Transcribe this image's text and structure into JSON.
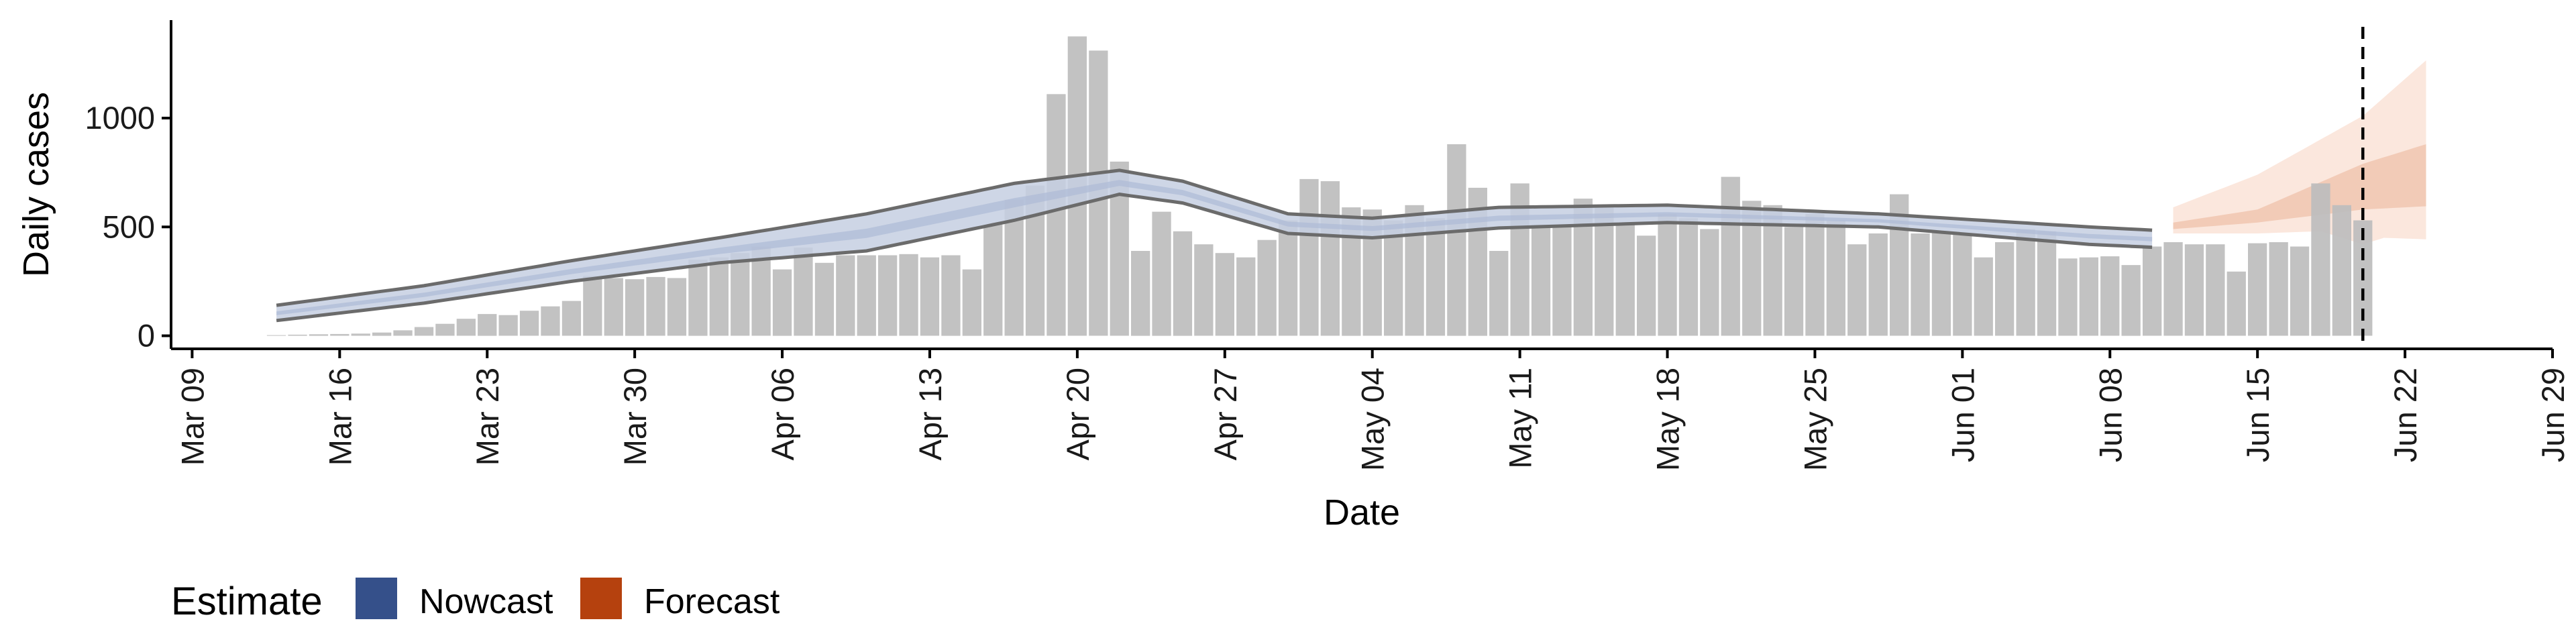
{
  "chart_data": {
    "type": "bar",
    "xlabel": "Date",
    "ylabel": "Daily cases",
    "grid": false,
    "y_ticks": [
      0,
      500,
      1000
    ],
    "ylim": [
      -60,
      1450
    ],
    "x_ticks": [
      {
        "date": "2020-03-09",
        "label": "Mar 09"
      },
      {
        "date": "2020-03-16",
        "label": "Mar 16"
      },
      {
        "date": "2020-03-23",
        "label": "Mar 23"
      },
      {
        "date": "2020-03-30",
        "label": "Mar 30"
      },
      {
        "date": "2020-04-06",
        "label": "Apr 06"
      },
      {
        "date": "2020-04-13",
        "label": "Apr 13"
      },
      {
        "date": "2020-04-20",
        "label": "Apr 20"
      },
      {
        "date": "2020-04-27",
        "label": "Apr 27"
      },
      {
        "date": "2020-05-04",
        "label": "May 04"
      },
      {
        "date": "2020-05-11",
        "label": "May 11"
      },
      {
        "date": "2020-05-18",
        "label": "May 18"
      },
      {
        "date": "2020-05-25",
        "label": "May 25"
      },
      {
        "date": "2020-06-01",
        "label": "Jun 01"
      },
      {
        "date": "2020-06-08",
        "label": "Jun 08"
      },
      {
        "date": "2020-06-15",
        "label": "Jun 15"
      },
      {
        "date": "2020-06-22",
        "label": "Jun 22"
      },
      {
        "date": "2020-06-29",
        "label": "Jun 29"
      }
    ],
    "xlim": [
      "2020-03-08",
      "2020-06-29"
    ],
    "observed_cases": {
      "start_date": "2020-03-13",
      "values": [
        3,
        5,
        7,
        8,
        10,
        15,
        25,
        40,
        55,
        78,
        100,
        95,
        115,
        135,
        160,
        275,
        265,
        260,
        270,
        265,
        350,
        360,
        380,
        410,
        305,
        405,
        335,
        370,
        370,
        370,
        375,
        360,
        370,
        305,
        510,
        625,
        690,
        1110,
        1375,
        1310,
        800,
        390,
        570,
        480,
        420,
        380,
        360,
        440,
        530,
        720,
        710,
        590,
        580,
        530,
        600,
        540,
        880,
        680,
        390,
        700,
        510,
        510,
        630,
        590,
        510,
        460,
        560,
        540,
        490,
        730,
        620,
        600,
        500,
        560,
        530,
        420,
        470,
        650,
        470,
        480,
        470,
        360,
        430,
        490,
        480,
        355,
        360,
        365,
        325,
        410,
        430,
        420,
        420,
        295,
        425,
        430,
        410,
        700,
        600,
        530
      ]
    },
    "nowcast": {
      "start_date": "2020-03-13",
      "end_date": "2020-06-10",
      "upper_90": [
        [
          0,
          140
        ],
        [
          7,
          230
        ],
        [
          14,
          345
        ],
        [
          21,
          450
        ],
        [
          28,
          560
        ],
        [
          35,
          700
        ],
        [
          40,
          760
        ],
        [
          43,
          710
        ],
        [
          48,
          560
        ],
        [
          52,
          540
        ],
        [
          58,
          590
        ],
        [
          66,
          600
        ],
        [
          76,
          560
        ],
        [
          86,
          500
        ],
        [
          96,
          450
        ],
        [
          104,
          430
        ],
        [
          110,
          480
        ],
        [
          118,
          570
        ]
      ],
      "lower_90": [
        [
          0,
          70
        ],
        [
          7,
          150
        ],
        [
          14,
          250
        ],
        [
          21,
          335
        ],
        [
          28,
          390
        ],
        [
          35,
          530
        ],
        [
          40,
          650
        ],
        [
          43,
          610
        ],
        [
          48,
          470
        ],
        [
          52,
          450
        ],
        [
          58,
          495
        ],
        [
          66,
          520
        ],
        [
          76,
          500
        ],
        [
          86,
          420
        ],
        [
          96,
          375
        ],
        [
          104,
          360
        ],
        [
          110,
          395
        ],
        [
          118,
          450
        ]
      ]
    },
    "forecast": {
      "start_date": "2020-06-11",
      "end_date": "2020-06-23",
      "upper_90": [
        [
          0,
          590
        ],
        [
          4,
          740
        ],
        [
          9,
          1010
        ],
        [
          13,
          1350
        ]
      ],
      "lower_90": [
        [
          0,
          470
        ],
        [
          4,
          470
        ],
        [
          7,
          480
        ],
        [
          9,
          420
        ],
        [
          10,
          450
        ],
        [
          13,
          440
        ]
      ],
      "upper_50": [
        [
          0,
          520
        ],
        [
          4,
          580
        ],
        [
          9,
          790
        ],
        [
          13,
          910
        ]
      ],
      "lower_50": [
        [
          0,
          490
        ],
        [
          4,
          520
        ],
        [
          9,
          580
        ],
        [
          13,
          600
        ]
      ]
    },
    "vertical_dashed_line_date": "2020-06-20",
    "legend": {
      "title": "Estimate",
      "placement": "bottom-left",
      "items": [
        {
          "label": "Nowcast",
          "color": "#35508a"
        },
        {
          "label": "Forecast",
          "color": "#b5410e"
        }
      ]
    },
    "colors": {
      "bars": "#bdbdbd",
      "nowcast_band": "#c6cfe2",
      "nowcast_lines": "#6b6b6b",
      "forecast_outer": "#fbe7dd",
      "forecast_inner": "#f2cbb7",
      "axis": "#000000"
    }
  }
}
